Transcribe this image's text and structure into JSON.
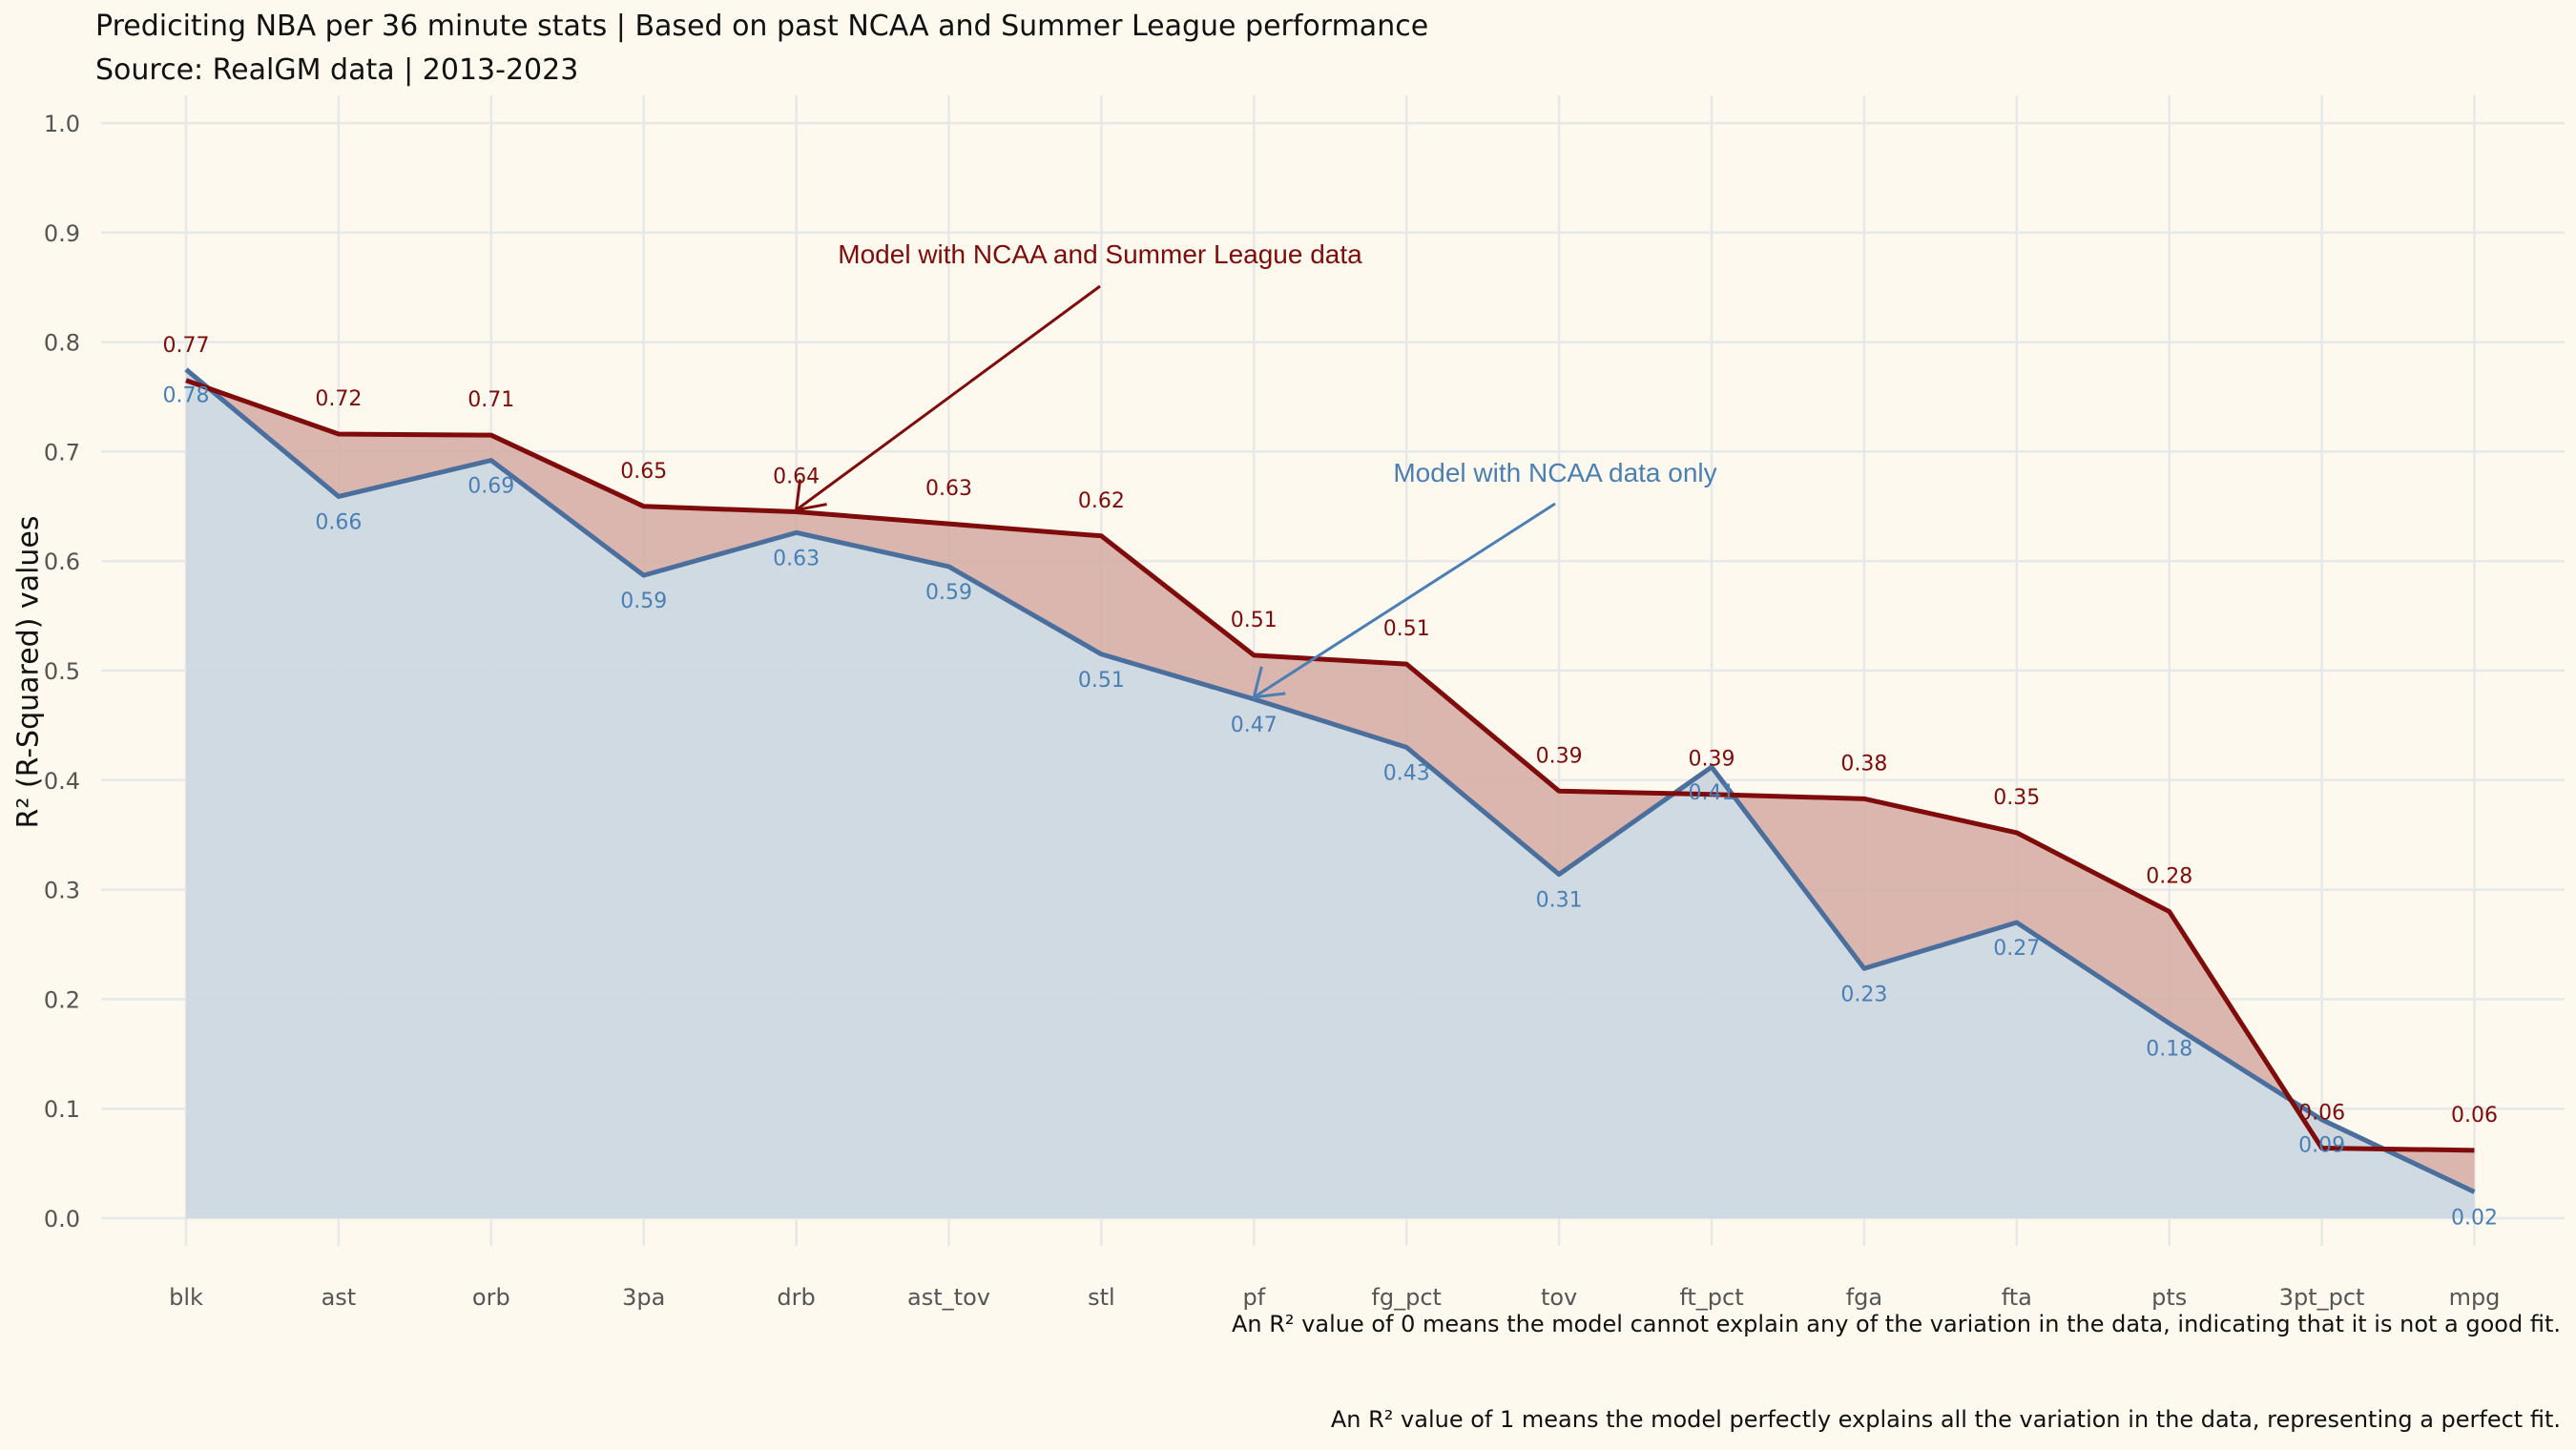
{
  "title": "Prediciting NBA per 36 minute stats | Based on past NCAA and Summer League performance",
  "subtitle": "Source: RealGM data | 2013-2023",
  "captions": [
    "An R² value of 0 means the model cannot explain any of the variation in the data, indicating that it is not a good fit.",
    "An R² value of 1 means the model perfectly explains all the variation in the data, representing a perfect fit."
  ],
  "colors": {
    "background": "#fdf9ee",
    "grid": "#e6e8ea",
    "ncaa_summer": "#7f0b0b",
    "ncaa_only": "#4a6f9d",
    "ncaa_only_label": "#4a7fb5",
    "area_gap": "#d4aaa3",
    "area_base": "#cdd8e0"
  },
  "chart_data": {
    "type": "area",
    "xlabel": "",
    "ylabel": "R² (R-Squared) values",
    "ylim": [
      0,
      1.0
    ],
    "yticks": [
      "0.0",
      "0.1",
      "0.2",
      "0.3",
      "0.4",
      "0.5",
      "0.6",
      "0.7",
      "0.8",
      "0.9",
      "1.0"
    ],
    "grid": true,
    "categories": [
      "blk",
      "ast",
      "orb",
      "3pa",
      "drb",
      "ast_tov",
      "stl",
      "pf",
      "fg_pct",
      "tov",
      "ft_pct",
      "fga",
      "fta",
      "pts",
      "3pt_pct",
      "mpg"
    ],
    "series": [
      {
        "key": "ncaa_summer",
        "values": [
          0.765,
          0.716,
          0.715,
          0.65,
          0.645,
          0.634,
          0.623,
          0.514,
          0.506,
          0.39,
          0.387,
          0.383,
          0.352,
          0.28,
          0.064,
          0.062
        ],
        "labels": [
          "0.77",
          "0.72",
          "0.71",
          "0.65",
          "0.64",
          "0.63",
          "0.62",
          "0.51",
          "0.51",
          "0.39",
          "0.39",
          "0.38",
          "0.35",
          "0.28",
          "0.06",
          "0.06"
        ]
      },
      {
        "key": "ncaa_only",
        "values": [
          0.775,
          0.659,
          0.692,
          0.587,
          0.626,
          0.595,
          0.515,
          0.474,
          0.43,
          0.314,
          0.412,
          0.228,
          0.27,
          0.178,
          0.09,
          0.024
        ],
        "labels": [
          "0.78",
          "0.66",
          "0.69",
          "0.59",
          "0.63",
          "0.59",
          "0.51",
          "0.47",
          "0.43",
          "0.31",
          "0.41",
          "0.23",
          "0.27",
          "0.18",
          "0.09",
          "0.02"
        ]
      }
    ],
    "annotations": [
      {
        "text": "Model with NCAA and Summer League data",
        "series": "ncaa_summer",
        "category": "drb"
      },
      {
        "text": "Model with NCAA data only",
        "series": "ncaa_only",
        "category": "pf"
      }
    ]
  }
}
